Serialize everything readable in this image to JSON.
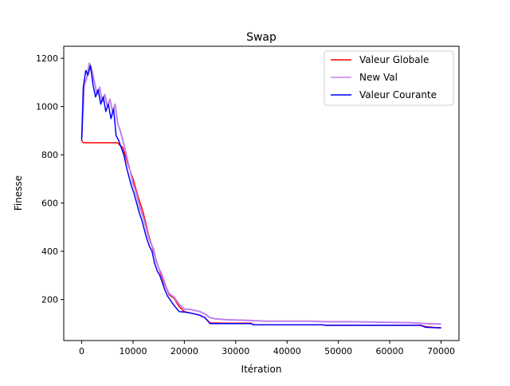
{
  "chart_data": {
    "type": "line",
    "title": "Swap",
    "xlabel": "Itération",
    "ylabel": "Finesse",
    "xlim": [
      -3500,
      73500
    ],
    "ylim": [
      30,
      1250
    ],
    "xticks": [
      {
        "value": 0,
        "label": "0"
      },
      {
        "value": 10000,
        "label": "10000"
      },
      {
        "value": 20000,
        "label": "20000"
      },
      {
        "value": 30000,
        "label": "30000"
      },
      {
        "value": 40000,
        "label": "40000"
      },
      {
        "value": 50000,
        "label": "50000"
      },
      {
        "value": 60000,
        "label": "60000"
      },
      {
        "value": 70000,
        "label": "70000"
      }
    ],
    "yticks": [
      {
        "value": 200,
        "label": "200"
      },
      {
        "value": 400,
        "label": "400"
      },
      {
        "value": 600,
        "label": "600"
      },
      {
        "value": 800,
        "label": "800"
      },
      {
        "value": 1000,
        "label": "1000"
      },
      {
        "value": 1200,
        "label": "1200"
      }
    ],
    "grid": false,
    "legend_position": "top-right",
    "series": [
      {
        "name": "Valeur Globale",
        "color": "#ff0000",
        "x": [
          0,
          300,
          7000,
          7400,
          8000,
          9000,
          10000,
          11000,
          12000,
          13000,
          14000,
          15000,
          16000,
          17000,
          18000,
          19000,
          20000,
          21000,
          22000,
          23000,
          24000,
          25000,
          28000,
          33000,
          33500,
          40000,
          47000,
          47500,
          56000,
          66000,
          67000,
          69000,
          70000
        ],
        "y": [
          860,
          850,
          850,
          840,
          830,
          760,
          700,
          625,
          560,
          470,
          400,
          330,
          270,
          220,
          205,
          170,
          150,
          145,
          140,
          135,
          125,
          103,
          102,
          102,
          95,
          95,
          95,
          93,
          93,
          93,
          88,
          84,
          84
        ]
      },
      {
        "name": "New Val",
        "color": "#bf80f0",
        "x": [
          0,
          500,
          1000,
          1500,
          2000,
          2500,
          3000,
          3500,
          4000,
          4500,
          5000,
          5500,
          6000,
          6500,
          7000,
          7500,
          8000,
          8500,
          9000,
          9500,
          10000,
          10500,
          11000,
          11500,
          12000,
          12500,
          13000,
          13500,
          14000,
          14500,
          15000,
          15500,
          16000,
          16500,
          17000,
          18000,
          19000,
          20000,
          21000,
          22000,
          23000,
          24000,
          25000,
          26000,
          28000,
          30000,
          33000,
          36000,
          40000,
          44000,
          48000,
          52000,
          56000,
          60000,
          64000,
          67000,
          70000
        ],
        "y": [
          870,
          1090,
          1120,
          1180,
          1150,
          1100,
          1050,
          1080,
          1020,
          1050,
          1000,
          1030,
          980,
          1010,
          930,
          900,
          860,
          820,
          770,
          730,
          680,
          650,
          610,
          570,
          540,
          500,
          460,
          430,
          410,
          360,
          330,
          310,
          280,
          250,
          225,
          210,
          180,
          160,
          160,
          155,
          150,
          140,
          125,
          120,
          117,
          115,
          113,
          110,
          110,
          110,
          108,
          108,
          107,
          105,
          104,
          100,
          98
        ]
      },
      {
        "name": "Valeur Courante",
        "color": "#0000ff",
        "x": [
          0,
          300,
          800,
          1200,
          1700,
          2200,
          2700,
          3200,
          3700,
          4200,
          4700,
          5200,
          5700,
          6200,
          6700,
          7200,
          7700,
          8200,
          8700,
          9200,
          9700,
          10200,
          10700,
          11200,
          11700,
          12200,
          12700,
          13200,
          13700,
          14200,
          14700,
          15200,
          15700,
          16200,
          16700,
          17200,
          18000,
          19000,
          20000,
          21000,
          22000,
          23000,
          24000,
          25000,
          26000,
          28000,
          30000,
          33000,
          33500,
          40000,
          47000,
          47500,
          56000,
          66000,
          67000,
          70000
        ],
        "y": [
          860,
          1080,
          1150,
          1130,
          1170,
          1090,
          1040,
          1070,
          1010,
          1040,
          980,
          1010,
          950,
          990,
          880,
          860,
          830,
          800,
          750,
          710,
          670,
          640,
          600,
          560,
          530,
          490,
          450,
          420,
          400,
          350,
          320,
          300,
          270,
          240,
          215,
          200,
          175,
          150,
          148,
          145,
          140,
          135,
          125,
          100,
          100,
          100,
          100,
          100,
          95,
          95,
          95,
          93,
          93,
          93,
          85,
          82
        ]
      }
    ]
  }
}
